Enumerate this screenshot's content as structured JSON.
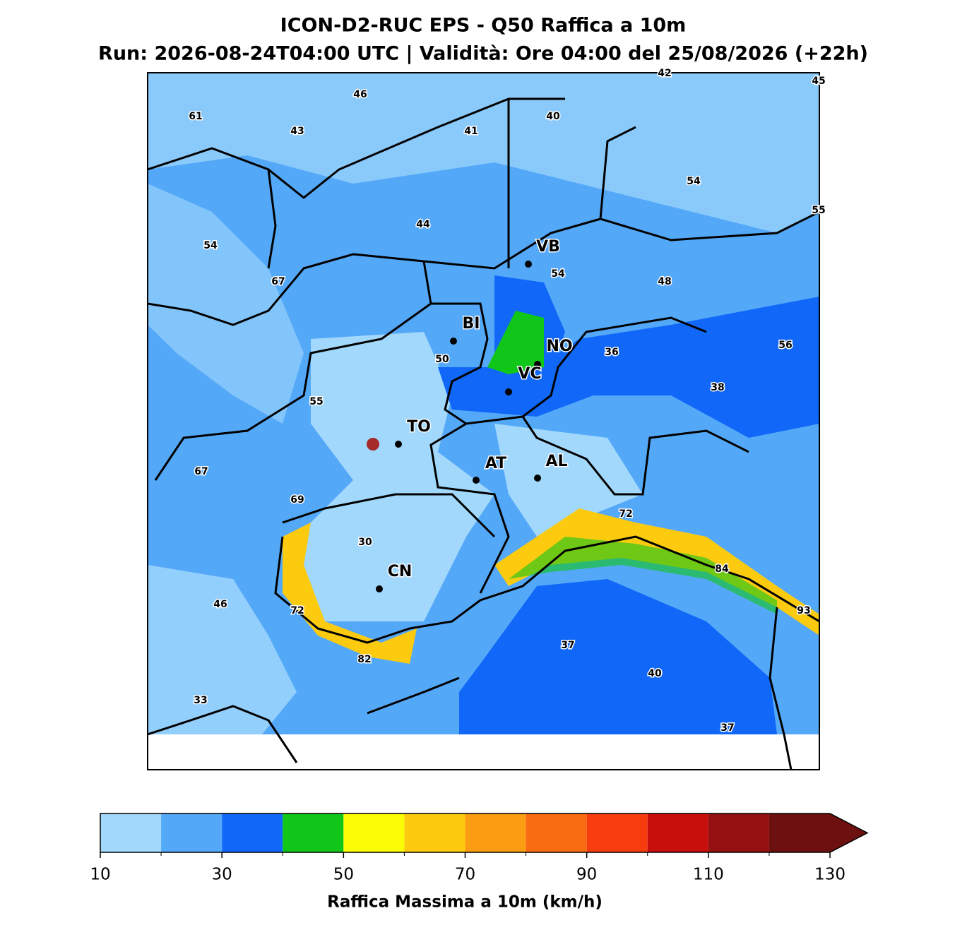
{
  "title": "ICON-D2-RUC EPS - Q50 Raffica a 10m",
  "subtitle": "Run: 2026-08-24T04:00 UTC | Validità: Ore 04:00 del 25/08/2026 (+22h)",
  "cities": [
    "VB",
    "BI",
    "NO",
    "VC",
    "TO",
    "AT",
    "AL",
    "CN"
  ],
  "value_labels": [
    42,
    45,
    46,
    61,
    43,
    41,
    40,
    54,
    55,
    44,
    54,
    67,
    54,
    48,
    56,
    36,
    50,
    38,
    55,
    67,
    69,
    72,
    30,
    84,
    93,
    46,
    72,
    37,
    82,
    40,
    33,
    37
  ],
  "colorbar": {
    "bounds": [
      10,
      20,
      30,
      40,
      50,
      60,
      70,
      80,
      90,
      100,
      110,
      120,
      130
    ],
    "colors": [
      "#a1d8fc",
      "#54a8f8",
      "#1168f8",
      "#10c619",
      "#fcfc06",
      "#fccb10",
      "#fb9d13",
      "#f96c12",
      "#f73c10",
      "#c80f0c",
      "#951010",
      "#6d1010"
    ],
    "extend_color": "#6d1010",
    "ticks": [
      10,
      30,
      50,
      70,
      90,
      110,
      130
    ],
    "label": "Raffica Massima a 10m (km/h)"
  }
}
